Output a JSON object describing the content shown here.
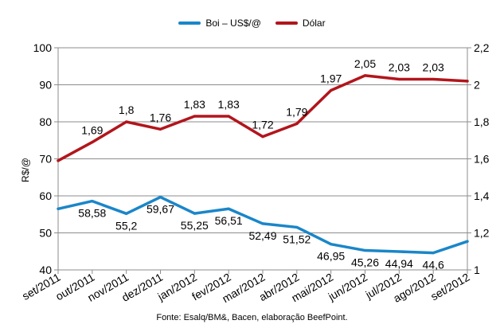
{
  "chart_data": {
    "type": "line",
    "categories": [
      "set/2011",
      "out/2011",
      "nov/2011",
      "dez/2011",
      "jan/2012",
      "fev/2012",
      "mar/2012",
      "abr/2012",
      "mai/2012",
      "jun/2012",
      "jul/2012",
      "ago/2012",
      "set/2012"
    ],
    "series": [
      {
        "name": "Boi – US$/@",
        "axis": "left",
        "color": "#1a86c9",
        "values": [
          56.5,
          58.58,
          55.2,
          59.67,
          55.25,
          56.51,
          52.49,
          51.52,
          46.95,
          45.26,
          44.94,
          44.6,
          47.7
        ],
        "labels": [
          "",
          "58,58",
          "55,2",
          "59,67",
          "55,25",
          "56,51",
          "52,49",
          "51,52",
          "46,95",
          "45,26",
          "44,94",
          "44,6",
          ""
        ]
      },
      {
        "name": "Dólar",
        "axis": "right",
        "color": "#b2151c",
        "values": [
          1.59,
          1.69,
          1.8,
          1.76,
          1.83,
          1.83,
          1.72,
          1.79,
          1.97,
          2.05,
          2.03,
          2.03,
          2.02
        ],
        "labels": [
          "",
          "1,69",
          "1,8",
          "1,76",
          "1,83",
          "1,83",
          "1,72",
          "1,79",
          "1,97",
          "2,05",
          "2,03",
          "2,03",
          ""
        ]
      }
    ],
    "ylabel": "R$/@",
    "ylim": [
      40,
      100
    ],
    "yticks": [
      "40",
      "50",
      "60",
      "70",
      "80",
      "90",
      "100"
    ],
    "y2lim": [
      1,
      2.2
    ],
    "y2ticks": [
      "1",
      "1,2",
      "1,4",
      "1,6",
      "1,8",
      "2",
      "2,2"
    ],
    "grid": true,
    "legend_position": "top"
  },
  "source": "Fonte: Esalq/BM&, Bacen, elaboração BeefPoint."
}
